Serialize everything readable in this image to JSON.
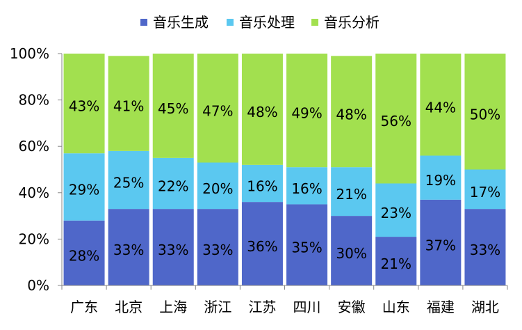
{
  "chart_data": {
    "type": "bar",
    "stacked": "percent",
    "categories": [
      "广东",
      "北京",
      "上海",
      "浙江",
      "江苏",
      "四川",
      "安徽",
      "山东",
      "福建",
      "湖北"
    ],
    "series": [
      {
        "name": "音乐生成",
        "color": "#4f67c9",
        "values": [
          28,
          33,
          33,
          33,
          36,
          35,
          30,
          21,
          37,
          33
        ],
        "labels": [
          "28%",
          "33%",
          "33%",
          "33%",
          "36%",
          "35%",
          "30%",
          "21%",
          "37%",
          "33%"
        ]
      },
      {
        "name": "音乐处理",
        "color": "#5bc8f0",
        "values": [
          29,
          25,
          22,
          20,
          16,
          16,
          21,
          23,
          19,
          17
        ],
        "labels": [
          "29%",
          "25%",
          "22%",
          "20%",
          "16%",
          "16%",
          "21%",
          "23%",
          "19%",
          "17%"
        ]
      },
      {
        "name": "音乐分析",
        "color": "#a2e04f",
        "values": [
          43,
          41,
          45,
          47,
          48,
          49,
          48,
          56,
          44,
          50
        ],
        "labels": [
          "43%",
          "41%",
          "45%",
          "47%",
          "48%",
          "49%",
          "48%",
          "56%",
          "44%",
          "50%"
        ]
      }
    ],
    "ylim": [
      0,
      100
    ],
    "yticks": [
      "0%",
      "20%",
      "40%",
      "60%",
      "80%",
      "100%"
    ],
    "grid": false,
    "legend": "top"
  }
}
